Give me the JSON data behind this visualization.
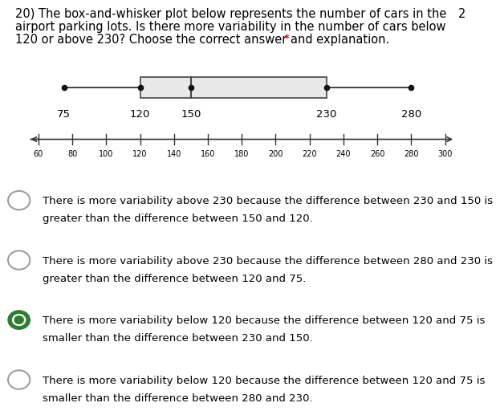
{
  "title_line1": "20) The box-and-whisker plot below represents the number of cars in the",
  "title_line2": "airport parking lots. Is there more variability in the number of cars below",
  "title_line3": "120 or above 230? Choose the correct answer and explanation.",
  "title_star": "*",
  "point_number": "2",
  "whisker_min": 75,
  "q1": 120,
  "median": 150,
  "q3": 230,
  "whisker_max": 280,
  "axis_min": 60,
  "axis_max": 300,
  "axis_step": 20,
  "box_color": "#e8e8e8",
  "box_edge_color": "#444444",
  "whisker_color": "#333333",
  "dot_color": "#111111",
  "axis_color": "#333333",
  "background_color": "#ffffff",
  "star_color": "#cc0000",
  "options": [
    {
      "text": "There is more variability above 230 because the difference between 230 and 150 is\ngreater than the difference between 150 and 120.",
      "selected": false
    },
    {
      "text": "There is more variability above 230 because the difference between 280 and 230 is\ngreater than the difference between 120 and 75.",
      "selected": false
    },
    {
      "text": "There is more variability below 120 because the difference between 120 and 75 is\nsmaller than the difference between 230 and 150.",
      "selected": true
    },
    {
      "text": "There is more variability below 120 because the difference between 120 and 75 is\nsmaller than the difference between 280 and 230.",
      "selected": false
    }
  ]
}
